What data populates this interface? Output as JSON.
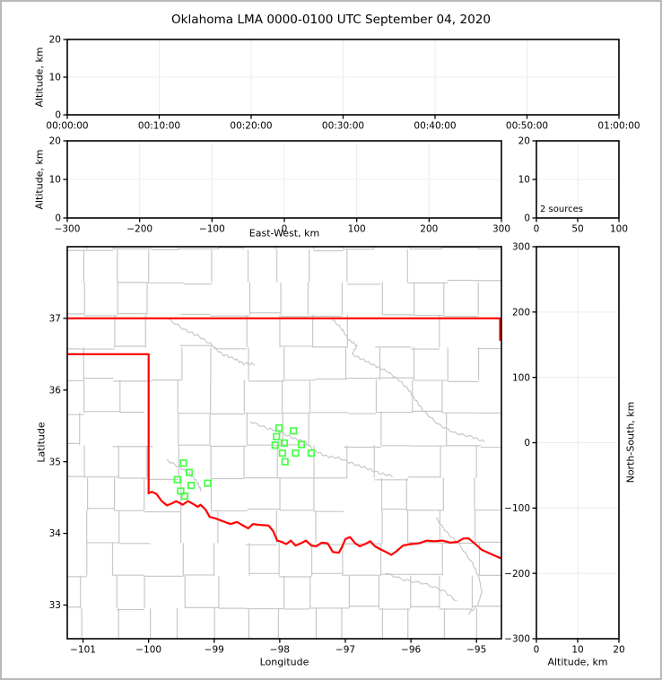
{
  "title": "Oklahoma LMA 0000-0100 UTC September 04, 2020",
  "colors": {
    "state_border": "#ff0000",
    "station_marker": "#44ff44",
    "county_line": "#c8c8c8",
    "gridline": "#ececec",
    "axis": "#000000",
    "frame": "#b9b9b9",
    "background": "#ffffff"
  },
  "chart_data": [
    {
      "id": "time_height",
      "type": "scatter",
      "xlabel": "",
      "ylabel": "Altitude, km",
      "xlim": [
        0,
        60
      ],
      "ylim": [
        0,
        20
      ],
      "xticks": [
        0,
        10,
        20,
        30,
        40,
        50,
        60
      ],
      "xtick_labels": [
        "00:00:00",
        "00:10:00",
        "00:20:00",
        "00:30:00",
        "00:40:00",
        "00:50:00",
        "01:00:00"
      ],
      "yticks": [
        0,
        10,
        20
      ],
      "ytick_labels": [
        "0",
        "10",
        "20"
      ],
      "grid": true,
      "series": []
    },
    {
      "id": "east_west_height",
      "type": "scatter",
      "xlabel": "East-West, km",
      "ylabel": "Altitude, km",
      "xlim": [
        -300,
        300
      ],
      "ylim": [
        0,
        20
      ],
      "xticks": [
        -300,
        -200,
        -100,
        0,
        100,
        200,
        300
      ],
      "xtick_labels": [
        "−300",
        "−200",
        "−100",
        "0",
        "100",
        "200",
        "300"
      ],
      "yticks": [
        0,
        10,
        20
      ],
      "ytick_labels": [
        "0",
        "10",
        "20"
      ],
      "grid": true,
      "series": []
    },
    {
      "id": "altitude_histogram",
      "type": "scatter",
      "xlabel": "",
      "ylabel": "",
      "annotation": "2 sources",
      "xlim": [
        0,
        100
      ],
      "ylim": [
        0,
        20
      ],
      "xticks": [
        0,
        50,
        100
      ],
      "xtick_labels": [
        "0",
        "50",
        "100"
      ],
      "yticks": [
        0,
        10,
        20
      ],
      "ytick_labels": [
        "0",
        "10",
        "20"
      ],
      "grid": true,
      "series": []
    },
    {
      "id": "plan_view_map",
      "type": "scatter",
      "xlabel": "Longitude",
      "ylabel": "Latitude",
      "xlim": [
        -101.24,
        -94.62
      ],
      "ylim": [
        32.53,
        38.0
      ],
      "xticks": [
        -101,
        -100,
        -99,
        -98,
        -97,
        -96,
        -95
      ],
      "xtick_labels": [
        "−101",
        "−100",
        "−99",
        "−98",
        "−97",
        "−96",
        "−95"
      ],
      "yticks": [
        33,
        34,
        35,
        36,
        37
      ],
      "ytick_labels": [
        "33",
        "34",
        "35",
        "36",
        "37"
      ],
      "grid": false,
      "stations": [
        [
          -98.01,
          35.47
        ],
        [
          -97.79,
          35.43
        ],
        [
          -98.05,
          35.35
        ],
        [
          -97.93,
          35.26
        ],
        [
          -98.07,
          35.23
        ],
        [
          -97.67,
          35.24
        ],
        [
          -97.96,
          35.12
        ],
        [
          -97.76,
          35.12
        ],
        [
          -97.52,
          35.12
        ],
        [
          -97.92,
          35.0
        ],
        [
          -99.47,
          34.98
        ],
        [
          -99.38,
          34.85
        ],
        [
          -99.56,
          34.75
        ],
        [
          -99.35,
          34.67
        ],
        [
          -99.1,
          34.7
        ],
        [
          -99.51,
          34.59
        ],
        [
          -99.45,
          34.52
        ]
      ],
      "state_borders": [
        {
          "name": "oklahoma-kansas-line",
          "points": [
            [
              -101.24,
              37.0
            ],
            [
              -94.62,
              37.0
            ]
          ]
        },
        {
          "name": "panhandle-texas-line",
          "points": [
            [
              -101.24,
              36.5
            ],
            [
              -100.0,
              36.5
            ],
            [
              -100.0,
              34.56
            ]
          ]
        },
        {
          "name": "oklahoma-missouri-line",
          "points": [
            [
              -94.64,
              37.0
            ],
            [
              -94.64,
              36.7
            ]
          ]
        },
        {
          "name": "red-river-line",
          "points": [
            [
              -100.0,
              34.56
            ],
            [
              -99.95,
              34.58
            ],
            [
              -99.88,
              34.55
            ],
            [
              -99.8,
              34.45
            ],
            [
              -99.72,
              34.39
            ],
            [
              -99.64,
              34.42
            ],
            [
              -99.58,
              34.45
            ],
            [
              -99.48,
              34.4
            ],
            [
              -99.4,
              34.45
            ],
            [
              -99.32,
              34.41
            ],
            [
              -99.25,
              34.37
            ],
            [
              -99.21,
              34.4
            ],
            [
              -99.13,
              34.33
            ],
            [
              -99.07,
              34.23
            ],
            [
              -98.98,
              34.21
            ],
            [
              -98.87,
              34.17
            ],
            [
              -98.75,
              34.13
            ],
            [
              -98.65,
              34.16
            ],
            [
              -98.58,
              34.12
            ],
            [
              -98.48,
              34.07
            ],
            [
              -98.41,
              34.13
            ],
            [
              -98.32,
              34.12
            ],
            [
              -98.17,
              34.11
            ],
            [
              -98.1,
              34.03
            ],
            [
              -98.04,
              33.9
            ],
            [
              -97.97,
              33.88
            ],
            [
              -97.9,
              33.85
            ],
            [
              -97.83,
              33.9
            ],
            [
              -97.76,
              33.83
            ],
            [
              -97.68,
              33.86
            ],
            [
              -97.6,
              33.9
            ],
            [
              -97.52,
              33.83
            ],
            [
              -97.44,
              33.82
            ],
            [
              -97.36,
              33.87
            ],
            [
              -97.27,
              33.86
            ],
            [
              -97.19,
              33.74
            ],
            [
              -97.1,
              33.73
            ],
            [
              -97.05,
              33.81
            ],
            [
              -97.0,
              33.92
            ],
            [
              -96.93,
              33.95
            ],
            [
              -96.85,
              33.86
            ],
            [
              -96.78,
              33.82
            ],
            [
              -96.7,
              33.85
            ],
            [
              -96.62,
              33.89
            ],
            [
              -96.55,
              33.82
            ],
            [
              -96.47,
              33.78
            ],
            [
              -96.38,
              33.74
            ],
            [
              -96.3,
              33.7
            ],
            [
              -96.22,
              33.75
            ],
            [
              -96.12,
              33.83
            ],
            [
              -96.0,
              33.85
            ],
            [
              -95.88,
              33.86
            ],
            [
              -95.76,
              33.9
            ],
            [
              -95.64,
              33.89
            ],
            [
              -95.52,
              33.9
            ],
            [
              -95.4,
              33.87
            ],
            [
              -95.29,
              33.88
            ],
            [
              -95.2,
              33.93
            ],
            [
              -95.12,
              33.93
            ],
            [
              -95.03,
              33.86
            ],
            [
              -94.92,
              33.77
            ],
            [
              -94.8,
              33.72
            ],
            [
              -94.7,
              33.68
            ],
            [
              -94.62,
              33.65
            ]
          ]
        }
      ],
      "series": []
    },
    {
      "id": "north_south_height",
      "type": "scatter",
      "xlabel": "Altitude, km",
      "ylabel": "North-South, km",
      "xlim": [
        0,
        20
      ],
      "ylim": [
        -300,
        300
      ],
      "xticks": [
        0,
        10,
        20
      ],
      "xtick_labels": [
        "0",
        "10",
        "20"
      ],
      "yticks": [
        -300,
        -200,
        -100,
        0,
        100,
        200,
        300
      ],
      "ytick_labels": [
        "−300",
        "−200",
        "−100",
        "0",
        "100",
        "200",
        "300"
      ],
      "grid": true,
      "series": []
    }
  ]
}
